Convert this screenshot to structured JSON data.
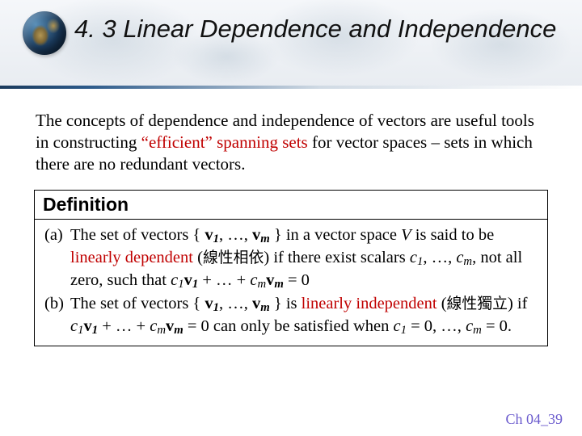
{
  "header": {
    "title": "4. 3 Linear Dependence and Independence"
  },
  "intro": {
    "pre": "The concepts of dependence and independence of vectors are useful tools in constructing ",
    "efficient": "“efficient”",
    "mid": " ",
    "spanning": "spanning sets",
    "post": " for vector spaces – sets in which there are no redundant vectors."
  },
  "definition": {
    "label": "Definition",
    "a_tag": "(a)",
    "a_t1": "The set of vectors { ",
    "a_t2": ", …, ",
    "a_t3": " } in a vector space ",
    "a_t4": " is said to be ",
    "a_dep": "linearly dependent",
    "a_t5": " (",
    "a_cjk": "線性相依",
    "a_t6": ") if there exist scalars ",
    "a_t7": ", …, ",
    "a_t8": ", not all zero, such that ",
    "a_t9": " + … + ",
    "a_t10": " = 0",
    "b_tag": "(b)",
    "b_t1": "The set of vectors { ",
    "b_t2": ", …, ",
    "b_t3": " } is ",
    "b_ind": "linearly independent",
    "b_t4": " (",
    "b_cjk": "線性獨立",
    "b_t5": ") if ",
    "b_t6": " + … + ",
    "b_t7": " = 0 can only be satisfied when ",
    "b_t8": " = 0, …, ",
    "b_t9": " = 0.",
    "v": "v",
    "c": "c",
    "V": "V",
    "s1": "1",
    "sm": "m"
  },
  "footer": {
    "label": "Ch 04_39"
  }
}
